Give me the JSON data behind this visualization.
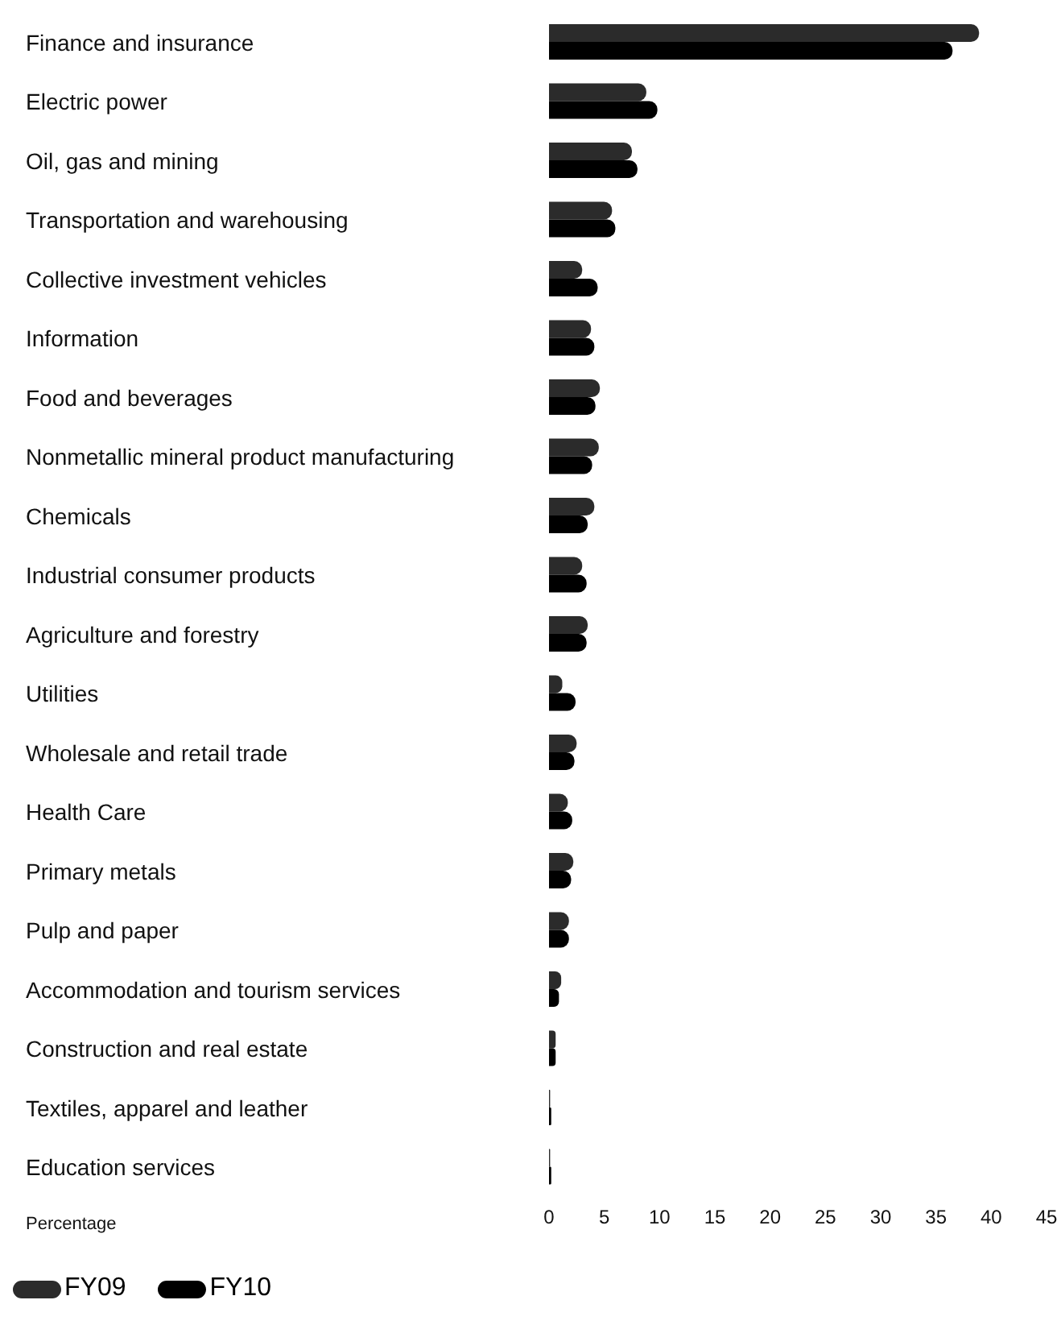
{
  "chart_data": {
    "type": "bar",
    "orientation": "horizontal",
    "xlabel": "Percentage",
    "categories": [
      "Finance and insurance",
      "Electric power",
      "Oil, gas and mining",
      "Transportation and warehousing",
      "Collective investment vehicles",
      "Information",
      "Food and beverages",
      "Nonmetallic mineral product manufacturing",
      "Chemicals",
      "Industrial consumer products",
      "Agriculture and forestry",
      "Utilities",
      "Wholesale and retail trade",
      "Health Care",
      "Primary metals",
      "Pulp and paper",
      "Accommodation and tourism services",
      "Construction and real estate",
      "Textiles, apparel and leather",
      "Education services"
    ],
    "series": [
      {
        "name": "FY09",
        "color": "#2b2b2b",
        "values": [
          38.9,
          8.8,
          7.5,
          5.7,
          3.0,
          3.8,
          4.6,
          4.5,
          4.1,
          3.0,
          3.5,
          1.2,
          2.5,
          1.7,
          2.2,
          1.8,
          1.1,
          0.6,
          0.1,
          0.1
        ]
      },
      {
        "name": "FY10",
        "color": "#000000",
        "values": [
          36.5,
          9.8,
          8.0,
          6.0,
          4.4,
          4.1,
          4.2,
          3.9,
          3.5,
          3.4,
          3.4,
          2.4,
          2.3,
          2.1,
          2.0,
          1.8,
          0.9,
          0.6,
          0.2,
          0.2
        ]
      }
    ],
    "xlim": [
      0,
      45
    ],
    "xticks": [
      0,
      5,
      10,
      15,
      20,
      25,
      30,
      35,
      40,
      45
    ],
    "grid": false,
    "legend": "bottom left"
  }
}
